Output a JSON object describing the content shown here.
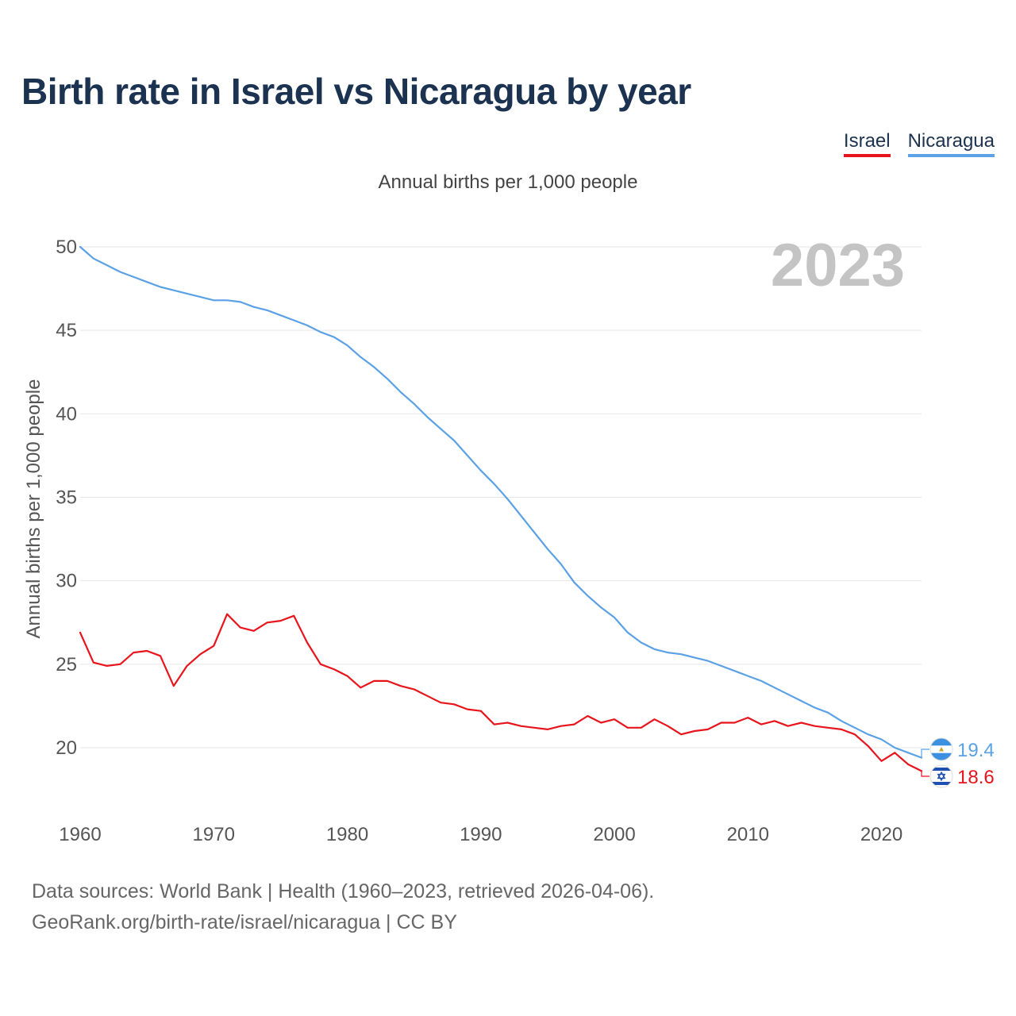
{
  "title": "Birth rate in Israel vs Nicaragua by year",
  "legend": [
    {
      "label": "Israel",
      "color": "#e8141c"
    },
    {
      "label": "Nicaragua",
      "color": "#5aa1e6"
    }
  ],
  "source": {
    "line1": "Data sources: World Bank | Health (1960–2023, retrieved 2026-04-06).",
    "line2": "GeoRank.org/birth-rate/israel/nicaragua | CC BY"
  },
  "chart_data": {
    "type": "line",
    "title": "Annual births per 1,000 people",
    "ylabel": "Annual births per 1,000 people",
    "xlabel": "",
    "year_watermark": "2023",
    "xlim": [
      1960,
      2023
    ],
    "ylim": [
      17,
      50
    ],
    "yticks": [
      20,
      25,
      30,
      35,
      40,
      45,
      50
    ],
    "xticks": [
      1960,
      1970,
      1980,
      1990,
      2000,
      2010,
      2020
    ],
    "grid": true,
    "x": [
      1960,
      1961,
      1962,
      1963,
      1964,
      1965,
      1966,
      1967,
      1968,
      1969,
      1970,
      1971,
      1972,
      1973,
      1974,
      1975,
      1976,
      1977,
      1978,
      1979,
      1980,
      1981,
      1982,
      1983,
      1984,
      1985,
      1986,
      1987,
      1988,
      1989,
      1990,
      1991,
      1992,
      1993,
      1994,
      1995,
      1996,
      1997,
      1998,
      1999,
      2000,
      2001,
      2002,
      2003,
      2004,
      2005,
      2006,
      2007,
      2008,
      2009,
      2010,
      2011,
      2012,
      2013,
      2014,
      2015,
      2016,
      2017,
      2018,
      2019,
      2020,
      2021,
      2022,
      2023
    ],
    "series": [
      {
        "name": "Israel",
        "color": "#e8141c",
        "end_label": "18.6",
        "values": [
          26.9,
          25.1,
          24.9,
          25.0,
          25.7,
          25.8,
          25.5,
          23.7,
          24.9,
          25.6,
          26.1,
          28.0,
          27.2,
          27.0,
          27.5,
          27.6,
          27.9,
          26.3,
          25.0,
          24.7,
          24.3,
          23.6,
          24.0,
          24.0,
          23.7,
          23.5,
          23.1,
          22.7,
          22.6,
          22.3,
          22.2,
          21.4,
          21.5,
          21.3,
          21.2,
          21.1,
          21.3,
          21.4,
          21.9,
          21.5,
          21.7,
          21.2,
          21.2,
          21.7,
          21.3,
          20.8,
          21.0,
          21.1,
          21.5,
          21.5,
          21.8,
          21.4,
          21.6,
          21.3,
          21.5,
          21.3,
          21.2,
          21.1,
          20.8,
          20.1,
          19.2,
          19.7,
          19.0,
          18.6
        ]
      },
      {
        "name": "Nicaragua",
        "color": "#5aa1e6",
        "end_label": "19.4",
        "values": [
          50.0,
          49.3,
          48.9,
          48.5,
          48.2,
          47.9,
          47.6,
          47.4,
          47.2,
          47.0,
          46.8,
          46.8,
          46.7,
          46.4,
          46.2,
          45.9,
          45.6,
          45.3,
          44.9,
          44.6,
          44.1,
          43.4,
          42.8,
          42.1,
          41.3,
          40.6,
          39.8,
          39.1,
          38.4,
          37.5,
          36.6,
          35.8,
          34.9,
          33.9,
          32.9,
          31.9,
          31.0,
          29.9,
          29.1,
          28.4,
          27.8,
          26.9,
          26.3,
          25.9,
          25.7,
          25.6,
          25.4,
          25.2,
          24.9,
          24.6,
          24.3,
          24.0,
          23.6,
          23.2,
          22.8,
          22.4,
          22.1,
          21.6,
          21.2,
          20.8,
          20.5,
          20.0,
          19.7,
          19.4
        ]
      }
    ]
  }
}
